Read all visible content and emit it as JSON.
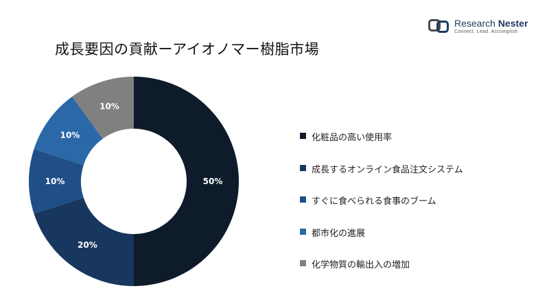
{
  "brand": {
    "name_light": "Research",
    "name_bold": "Nester",
    "tagline": "Connect. Lead. Accomplish"
  },
  "chart_data": {
    "type": "pie",
    "variant": "donut",
    "title": "成長要因の貢献ーアイオノマー樹脂市場",
    "legend_position": "right",
    "slices": [
      {
        "label": "化粧品の高い使用率",
        "value": 50,
        "display": "50%",
        "color": "#0d1b2a"
      },
      {
        "label": "成長するオンライン食品注文システム",
        "value": 20,
        "display": "20%",
        "color": "#17375e"
      },
      {
        "label": "すぐに食べられる食事のブーム",
        "value": 10,
        "display": "10%",
        "color": "#1f4f86"
      },
      {
        "label": "都市化の進展",
        "value": 10,
        "display": "10%",
        "color": "#2a68a8"
      },
      {
        "label": "化学物質の輸出入の増加",
        "value": 10,
        "display": "10%",
        "color": "#808080"
      }
    ]
  }
}
